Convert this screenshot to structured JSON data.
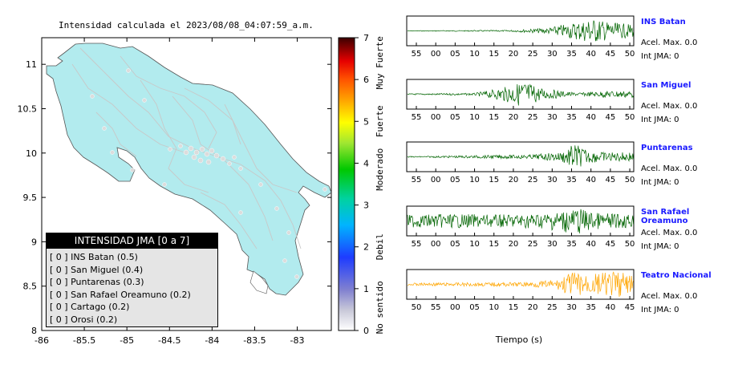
{
  "map": {
    "title": "Intensidad calculada el 2023/08/08_04:07:59_a.m.",
    "x_ticks": [
      "-86",
      "-85.5",
      "-85",
      "-84.5",
      "-84",
      "-83.5",
      "-83"
    ],
    "y_ticks": [
      "11",
      "10.5",
      "10",
      "9.5",
      "9",
      "8.5",
      "8"
    ],
    "land_color": "#b2ebee",
    "sea_color": "#ffffff"
  },
  "colorbar": {
    "ticks": [
      "0",
      "1",
      "2",
      "3",
      "4",
      "5",
      "6",
      "7"
    ],
    "labels": [
      "No sentido",
      "Debil",
      "Moderado",
      "Fuerte",
      "Muy Fuerte"
    ]
  },
  "legend": {
    "header": "INTENSIDAD JMA [0 a 7]",
    "items": [
      {
        "index": "[ 0 ]",
        "label": "INS Batan (0.5)"
      },
      {
        "index": "[ 0 ]",
        "label": "San Miguel (0.4)"
      },
      {
        "index": "[ 0 ]",
        "label": "Puntarenas (0.3)"
      },
      {
        "index": "[ 0 ]",
        "label": "San Rafael Oreamuno (0.2)"
      },
      {
        "index": "[ 0 ]",
        "label": "Cartago (0.2)"
      },
      {
        "index": "[ 0 ]",
        "label": "Orosi (0.2)"
      }
    ]
  },
  "waveforms": {
    "xlabel": "Tiempo (s)",
    "stations": [
      {
        "name": "INS Batan",
        "accel": "Acel. Max. 0.0",
        "jma": "Int JMA: 0",
        "color": "#006400",
        "ticks": [
          "55",
          "00",
          "05",
          "10",
          "15",
          "20",
          "25",
          "30",
          "35",
          "40",
          "45",
          "50"
        ]
      },
      {
        "name": "San Miguel",
        "accel": "Acel. Max. 0.0",
        "jma": "Int JMA: 0",
        "color": "#006400",
        "ticks": [
          "55",
          "00",
          "05",
          "10",
          "15",
          "20",
          "25",
          "30",
          "35",
          "40",
          "45",
          "50"
        ]
      },
      {
        "name": "Puntarenas",
        "accel": "Acel. Max. 0.0",
        "jma": "Int JMA: 0",
        "color": "#006400",
        "ticks": [
          "55",
          "00",
          "05",
          "10",
          "15",
          "20",
          "25",
          "30",
          "35",
          "40",
          "45",
          "50"
        ]
      },
      {
        "name": "San Rafael Oreamuno",
        "accel": "Acel. Max. 0.0",
        "jma": "Int JMA: 0",
        "color": "#006400",
        "ticks": [
          "55",
          "00",
          "05",
          "10",
          "15",
          "20",
          "25",
          "30",
          "35",
          "40",
          "45",
          "50"
        ]
      },
      {
        "name": "Teatro Nacional",
        "accel": "Acel. Max. 0.0",
        "jma": "Int JMA: 0",
        "color": "#ffa500",
        "ticks": [
          "50",
          "55",
          "00",
          "05",
          "10",
          "15",
          "20",
          "25",
          "30",
          "35",
          "40",
          "45"
        ]
      }
    ]
  },
  "chart_data": [
    {
      "type": "scatter",
      "title": "Intensidad calculada el 2023/08/08_04:07:59_a.m.",
      "xlabel": "",
      "ylabel": "",
      "xlim": [
        -86,
        -82.6
      ],
      "ylim": [
        8,
        11.3
      ],
      "colorbar": {
        "range": [
          0,
          7
        ],
        "labels": [
          "No sentido",
          "Debil",
          "Moderado",
          "Fuerte",
          "Muy Fuerte"
        ]
      },
      "legend_title": "INTENSIDAD JMA [0 a 7]",
      "series": [
        {
          "name": "INS Batan",
          "value": 0.5
        },
        {
          "name": "San Miguel",
          "value": 0.4
        },
        {
          "name": "Puntarenas",
          "value": 0.3
        },
        {
          "name": "San Rafael Oreamuno",
          "value": 0.2
        },
        {
          "name": "Cartago",
          "value": 0.2
        },
        {
          "name": "Orosi",
          "value": 0.2
        }
      ]
    },
    {
      "type": "line",
      "xlabel": "Tiempo (s)",
      "series": [
        {
          "name": "INS Batan",
          "peak_accel": 0.0,
          "jma": 0
        },
        {
          "name": "San Miguel",
          "peak_accel": 0.0,
          "jma": 0
        },
        {
          "name": "Puntarenas",
          "peak_accel": 0.0,
          "jma": 0
        },
        {
          "name": "San Rafael Oreamuno",
          "peak_accel": 0.0,
          "jma": 0
        },
        {
          "name": "Teatro Nacional",
          "peak_accel": 0.0,
          "jma": 0
        }
      ]
    }
  ]
}
